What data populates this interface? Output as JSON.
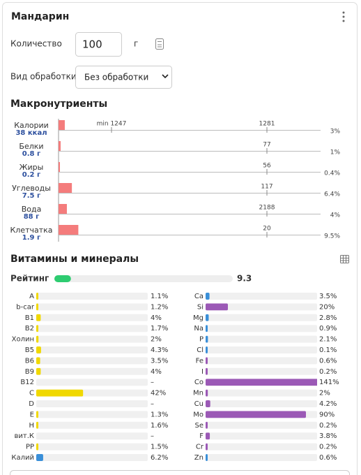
{
  "header": {
    "title": "Мандарин"
  },
  "amount": {
    "label": "Количество",
    "value": "100",
    "unit": "г"
  },
  "processing": {
    "label": "Вид обработки",
    "value": "Без обработки"
  },
  "macros": {
    "title": "Макронутриенты",
    "min_label": "min 1247",
    "color": "#f47c7c",
    "rows": [
      {
        "name": "Калории",
        "amount": "38 ккал",
        "norm": "1281",
        "pct": 3,
        "pct_label": "3%"
      },
      {
        "name": "Белки",
        "amount": "0.8 г",
        "norm": "77",
        "pct": 1,
        "pct_label": "1%"
      },
      {
        "name": "Жиры",
        "amount": "0.2 г",
        "norm": "56",
        "pct": 0.4,
        "pct_label": "0.4%"
      },
      {
        "name": "Углеводы",
        "amount": "7.5 г",
        "norm": "117",
        "pct": 6.4,
        "pct_label": "6.4%"
      },
      {
        "name": "Вода",
        "amount": "88 г",
        "norm": "2188",
        "pct": 4,
        "pct_label": "4%"
      },
      {
        "name": "Клетчатка",
        "amount": "1.9 г",
        "norm": "20",
        "pct": 9.5,
        "pct_label": "9.5%"
      }
    ]
  },
  "vitamins": {
    "title": "Витамины и минералы",
    "rating": {
      "label": "Рейтинг",
      "value": 9.3,
      "color": "#2ecc71"
    },
    "left": [
      {
        "name": "A",
        "pct": 1.1,
        "pct_label": "1.1%",
        "color": "#f0d800"
      },
      {
        "name": "b-car",
        "pct": 1.2,
        "pct_label": "1.2%",
        "color": "#f0d800"
      },
      {
        "name": "B1",
        "pct": 4,
        "pct_label": "4%",
        "color": "#f0d800"
      },
      {
        "name": "B2",
        "pct": 1.7,
        "pct_label": "1.7%",
        "color": "#f0d800"
      },
      {
        "name": "Холин",
        "pct": 2,
        "pct_label": "2%",
        "color": "#f0d800"
      },
      {
        "name": "B5",
        "pct": 4.3,
        "pct_label": "4.3%",
        "color": "#f0d800"
      },
      {
        "name": "B6",
        "pct": 3.5,
        "pct_label": "3.5%",
        "color": "#f0d800"
      },
      {
        "name": "B9",
        "pct": 4,
        "pct_label": "4%",
        "color": "#f0d800"
      },
      {
        "name": "B12",
        "pct": null,
        "pct_label": "–",
        "color": "#f0d800"
      },
      {
        "name": "C",
        "pct": 42,
        "pct_label": "42%",
        "color": "#f0d800"
      },
      {
        "name": "D",
        "pct": null,
        "pct_label": "–",
        "color": "#f0d800"
      },
      {
        "name": "E",
        "pct": 1.3,
        "pct_label": "1.3%",
        "color": "#f0d800"
      },
      {
        "name": "H",
        "pct": 1.6,
        "pct_label": "1.6%",
        "color": "#f0d800"
      },
      {
        "name": "вит.К",
        "pct": null,
        "pct_label": "–",
        "color": "#f0d800"
      },
      {
        "name": "PP",
        "pct": 1.5,
        "pct_label": "1.5%",
        "color": "#f0d800"
      },
      {
        "name": "Калий",
        "pct": 6.2,
        "pct_label": "6.2%",
        "color": "#3a8fd8"
      }
    ],
    "right": [
      {
        "name": "Ca",
        "pct": 3.5,
        "pct_label": "3.5%",
        "color": "#3a8fd8"
      },
      {
        "name": "Si",
        "pct": 20,
        "pct_label": "20%",
        "color": "#9b59b6"
      },
      {
        "name": "Mg",
        "pct": 2.8,
        "pct_label": "2.8%",
        "color": "#3a8fd8"
      },
      {
        "name": "Na",
        "pct": 0.9,
        "pct_label": "0.9%",
        "color": "#3a8fd8"
      },
      {
        "name": "P",
        "pct": 2.1,
        "pct_label": "2.1%",
        "color": "#3a8fd8"
      },
      {
        "name": "Cl",
        "pct": 0.1,
        "pct_label": "0.1%",
        "color": "#3a8fd8"
      },
      {
        "name": "Fe",
        "pct": 0.6,
        "pct_label": "0.6%",
        "color": "#9b59b6"
      },
      {
        "name": "I",
        "pct": 0.2,
        "pct_label": "0.2%",
        "color": "#9b59b6"
      },
      {
        "name": "Co",
        "pct": 141,
        "pct_label": "141%",
        "color": "#9b59b6"
      },
      {
        "name": "Mn",
        "pct": 2,
        "pct_label": "2%",
        "color": "#9b59b6"
      },
      {
        "name": "Cu",
        "pct": 4.2,
        "pct_label": "4.2%",
        "color": "#9b59b6"
      },
      {
        "name": "Mo",
        "pct": 90,
        "pct_label": "90%",
        "color": "#9b59b6"
      },
      {
        "name": "Se",
        "pct": 0.2,
        "pct_label": "0.2%",
        "color": "#9b59b6"
      },
      {
        "name": "F",
        "pct": 3.8,
        "pct_label": "3.8%",
        "color": "#9b59b6"
      },
      {
        "name": "Cr",
        "pct": 0.2,
        "pct_label": "0.2%",
        "color": "#9b59b6"
      },
      {
        "name": "Zn",
        "pct": 0.6,
        "pct_label": "0.6%",
        "color": "#3a8fd8"
      }
    ]
  }
}
